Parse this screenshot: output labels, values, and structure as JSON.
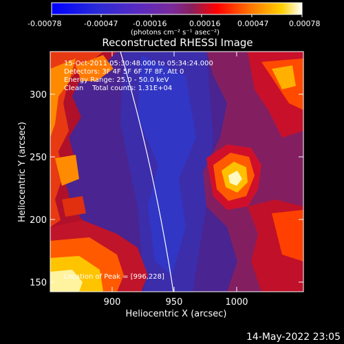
{
  "colorbar": {
    "tick_labels": [
      "-0.00078",
      "-0.00047",
      "-0.00016",
      "0.00016",
      "0.00047",
      "0.00078"
    ],
    "unit_line": "(photons cm⁻² s⁻¹ asec⁻²)",
    "colors": [
      "#0000ff",
      "#2a2ad8",
      "#5a2bc0",
      "#7a2b9a",
      "#8a1f5c",
      "#ff0000",
      "#ff7a00",
      "#ffd000",
      "#ffffff"
    ]
  },
  "plot": {
    "title": "Reconstructed RHESSI Image",
    "xlabel": "Heliocentric X (arcsec)",
    "ylabel": "Heliocentric Y (arcsec)",
    "x_ticks": [
      "900",
      "950",
      "1000"
    ],
    "y_ticks": [
      "150",
      "200",
      "250",
      "300"
    ],
    "annotations": [
      "15-Oct-2011 05:30:48.000 to 05:34:24.000",
      "Detectors: 3F 4F 5F 6F 7F 8F, Att 0",
      "Energy Range: 25.0 - 50.0 keV",
      "Clean    Total counts: 1.31E+04"
    ],
    "peak_label": "Location of Peak = [996,228]"
  },
  "footer": {
    "timestamp": "14-May-2022 23:05"
  }
}
